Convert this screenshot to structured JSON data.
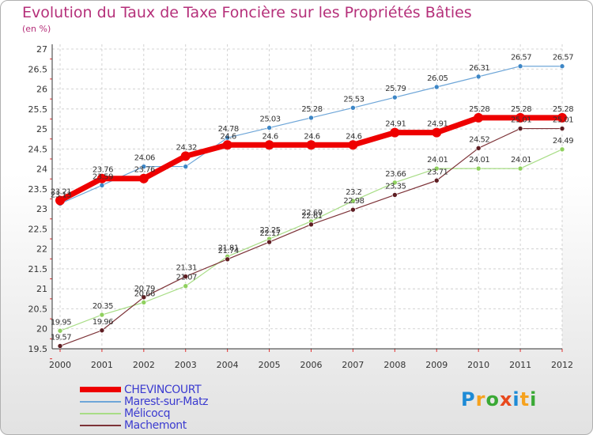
{
  "header": {
    "title": "Evolution du Taux de Taxe Foncière sur les Propriétés Bâties",
    "unit": "(en %)"
  },
  "logo": {
    "text": "Proxiti",
    "colors": [
      "#1e8bd6",
      "#f6a21e",
      "#3aa935",
      "#e8491d",
      "#1e8bd6",
      "#f6a21e",
      "#3aa935"
    ]
  },
  "chart_data": {
    "type": "line",
    "title": "Evolution du Taux de Taxe Foncière sur les Propriétés Bâties",
    "ylabel": "(en %)",
    "xlabel": "",
    "categories": [
      "2000",
      "2001",
      "2002",
      "2003",
      "2004",
      "2005",
      "2006",
      "2007",
      "2008",
      "2009",
      "2010",
      "2011",
      "2012"
    ],
    "ylim": [
      19.5,
      27
    ],
    "yticks": [
      "19.5",
      "20",
      "20.5",
      "21",
      "21.5",
      "22",
      "22.5",
      "23",
      "23.5",
      "24",
      "24.5",
      "25",
      "25.5",
      "26",
      "26.5",
      "27"
    ],
    "grid": true,
    "legend_position": "bottom-left",
    "series": [
      {
        "name": "Marest-sur-Matz",
        "color": "#6ea6d8",
        "marker": "#3d86c6",
        "width": 1.2,
        "values": [
          23.13,
          23.59,
          24.06,
          24.06,
          24.78,
          25.03,
          25.28,
          25.53,
          25.79,
          26.05,
          26.31,
          26.57,
          26.57
        ],
        "labels": [
          "23.13",
          "23.59",
          "24.06",
          "",
          "24.78",
          "25.03",
          "25.28",
          "25.53",
          "25.79",
          "26.05",
          "26.31",
          "26.57",
          "26.57"
        ]
      },
      {
        "name": "Mélicocq",
        "color": "#a8dd86",
        "marker": "#8fd05e",
        "width": 1.2,
        "values": [
          19.95,
          20.35,
          20.66,
          21.07,
          21.81,
          22.25,
          22.69,
          23.2,
          23.66,
          24.01,
          24.01,
          24.01,
          24.49
        ],
        "labels": [
          "19.95",
          "20.35",
          "20.66",
          "21.07",
          "21.81",
          "22.25",
          "22.69",
          "23.2",
          "23.66",
          "24.01",
          "24.01",
          "24.01",
          "24.49"
        ]
      },
      {
        "name": "Machemont",
        "color": "#7d3338",
        "marker": "#5e1d22",
        "width": 1.2,
        "values": [
          19.57,
          19.96,
          20.79,
          21.31,
          21.74,
          22.17,
          22.61,
          22.98,
          23.35,
          23.71,
          24.52,
          25.01,
          25.01
        ],
        "labels": [
          "19.57",
          "19.96",
          "20.79",
          "21.31",
          "21.74",
          "22.17",
          "22.61",
          "22.98",
          "23.35",
          "23.71",
          "24.52",
          "25.01",
          "25.01"
        ]
      },
      {
        "name": "CHEVINCOURT",
        "color": "#ee0000",
        "marker": "#ee0000",
        "width": 7,
        "values": [
          23.21,
          23.76,
          23.76,
          24.32,
          24.6,
          24.6,
          24.6,
          24.6,
          24.91,
          24.91,
          25.28,
          25.28,
          25.28
        ],
        "labels": [
          "23.21",
          "23.76",
          "23.76",
          "24.32",
          "24.6",
          "24.6",
          "24.6",
          "24.6",
          "24.91",
          "24.91",
          "25.28",
          "25.28",
          "25.28"
        ]
      }
    ],
    "legend_order": [
      "CHEVINCOURT",
      "Marest-sur-Matz",
      "Mélicocq",
      "Machemont"
    ]
  }
}
